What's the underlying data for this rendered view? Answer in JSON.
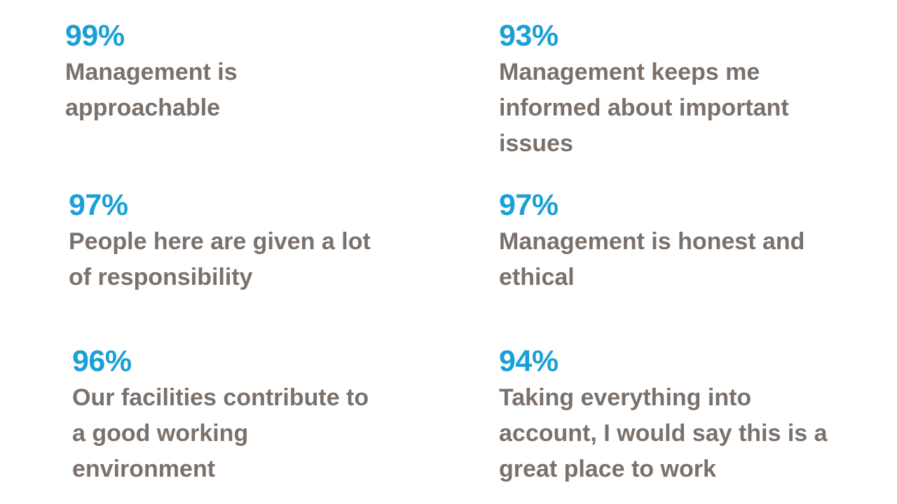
{
  "stats": [
    {
      "percent": "99%",
      "lines": [
        "Management is",
        "approachable"
      ]
    },
    {
      "percent": "93%",
      "lines": [
        "Management keeps me",
        "informed about important",
        "issues"
      ]
    },
    {
      "percent": "97%",
      "lines": [
        "People here are given a lot",
        "of responsibility"
      ]
    },
    {
      "percent": "97%",
      "lines": [
        "Management is honest and",
        "ethical"
      ]
    },
    {
      "percent": "96%",
      "lines": [
        "Our facilities contribute to",
        "a good working",
        "environment"
      ]
    },
    {
      "percent": "94%",
      "lines": [
        "Taking everything into",
        "account, I would say this is a",
        "great place to work"
      ]
    }
  ],
  "colors": {
    "percent": "#1aa0d6",
    "text": "#7b716b",
    "background": "#ffffff"
  }
}
